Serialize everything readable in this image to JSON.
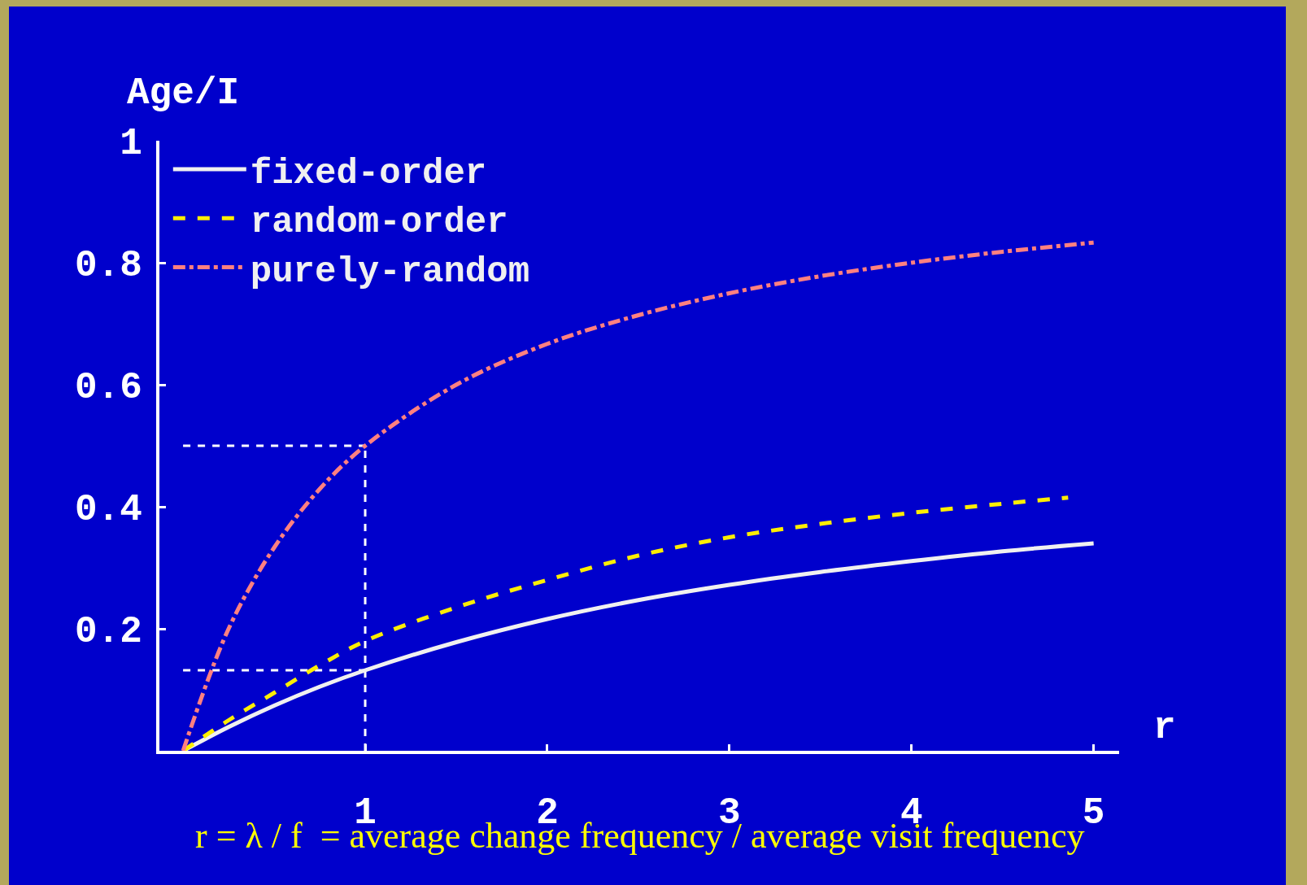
{
  "chart_data": {
    "type": "line",
    "xlabel": "r",
    "ylabel": "Age/I",
    "legend": "top left",
    "grid": false,
    "series": [
      {
        "name": "fixed-order",
        "color": "#f0f0f0",
        "line_style": "solid",
        "x": [
          0,
          0.25,
          0.5,
          0.75,
          1,
          1.5,
          2,
          2.5,
          3,
          3.5,
          4,
          4.5,
          5
        ],
        "values": [
          0,
          0.039,
          0.074,
          0.105,
          0.132,
          0.178,
          0.216,
          0.247,
          0.272,
          0.293,
          0.311,
          0.327,
          0.34
        ]
      },
      {
        "name": "random-order",
        "color": "#ffee00",
        "line_style": "dashed",
        "x": [
          0,
          0.25,
          0.5,
          0.75,
          1,
          1.5,
          2,
          2.5,
          3,
          3.5,
          4,
          4.5,
          4.86
        ],
        "values": [
          0,
          0.05,
          0.095,
          0.14,
          0.18,
          0.235,
          0.28,
          0.32,
          0.35,
          0.372,
          0.39,
          0.405,
          0.415
        ]
      },
      {
        "name": "purely-random",
        "color": "#ff8080",
        "line_style": "dashdot",
        "x": [
          0,
          0.25,
          0.5,
          0.75,
          1,
          1.5,
          2,
          2.5,
          3,
          3.5,
          4,
          4.5,
          5
        ],
        "values": [
          0,
          0.2,
          0.333,
          0.429,
          0.5,
          0.6,
          0.667,
          0.714,
          0.75,
          0.778,
          0.8,
          0.818,
          0.833
        ]
      }
    ],
    "xlim": [
      -0.13,
      5.14
    ],
    "ylim": [
      0,
      1
    ],
    "xticks": [
      1,
      2,
      3,
      4,
      5
    ],
    "yticks": [
      {
        "value": 0.2,
        "label": "0.2"
      },
      {
        "value": 0.4,
        "label": "0.4"
      },
      {
        "value": 0.6,
        "label": "0.6"
      },
      {
        "value": 0.8,
        "label": "0.8"
      },
      1
    ],
    "ref_lines": [
      {
        "axis": "x",
        "value": 1,
        "color": "#ffffff",
        "line_style": "dashed"
      },
      {
        "axis": "y",
        "value": 0.5,
        "color": "#ffffff",
        "line_style": "dashed"
      },
      {
        "axis": "y",
        "value": 0.132,
        "color": "#ffffff",
        "line_style": "dashed"
      }
    ],
    "annotations": [
      "r = λ / f  = average change frequency / average visit frequency"
    ]
  }
}
